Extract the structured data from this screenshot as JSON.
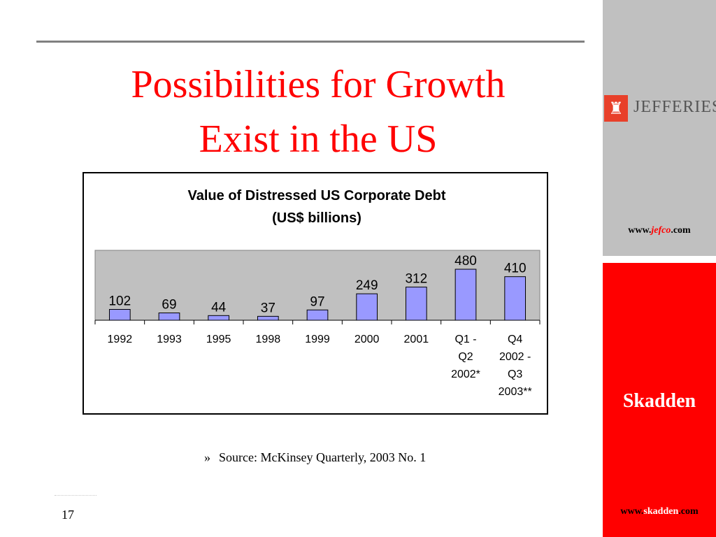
{
  "slide": {
    "title_line1": "Possibilities for Growth",
    "title_line2": "Exist in the US",
    "source_bullet": "»",
    "source": "Source: McKinsey Quarterly, 2003 No. 1",
    "page_number": "17"
  },
  "sidebar": {
    "jefferies_name": "JEFFERIES",
    "jefferies_url_prefix": "www.",
    "jefferies_url_domain": "jefco",
    "jefferies_url_suffix": ".com",
    "skadden_name": "Skadden",
    "skadden_url_prefix": "www.",
    "skadden_url_domain": "skadden",
    "skadden_url_suffix": ".com",
    "colors": {
      "grey_panel": "#c0c0c0",
      "red_panel": "#ff0000",
      "title": "#ff0000"
    }
  },
  "chart_data": {
    "type": "bar",
    "title": "Value of Distressed US Corporate Debt",
    "subtitle": "(US$ billions)",
    "categories": [
      [
        "1992"
      ],
      [
        "1993"
      ],
      [
        "1995"
      ],
      [
        "1998"
      ],
      [
        "1999"
      ],
      [
        "2000"
      ],
      [
        "2001"
      ],
      [
        "Q1 -",
        "Q2",
        "2002*"
      ],
      [
        "Q4",
        "2002 -",
        "Q3",
        "2003**"
      ]
    ],
    "values": [
      102,
      69,
      44,
      37,
      97,
      249,
      312,
      480,
      410
    ],
    "ylim": [
      0,
      500
    ],
    "bar_color": "#9999ff",
    "plot_background": "#c0c0c0",
    "grid": false,
    "legend": "none"
  }
}
